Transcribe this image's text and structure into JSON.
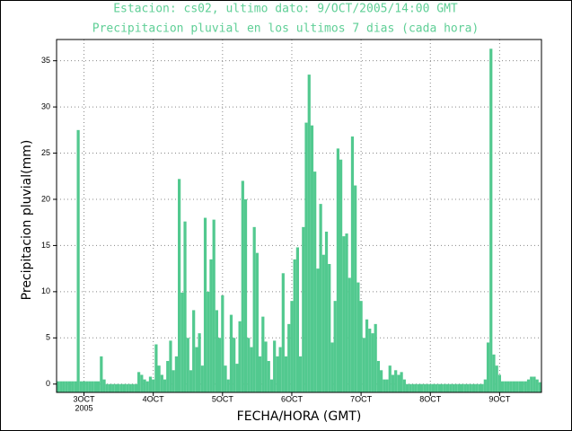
{
  "chart_data": {
    "type": "bar",
    "title": "Estacion: cs02, ultimo dato: 9/OCT/2005/14:00 GMT",
    "subtitle": "Precipitacion pluvial en los ultimos 7 dias (cada hora)",
    "x_label": "FECHA/HORA (GMT)",
    "y_label": "Precipitacion pluvial(mm)",
    "year_label": "2005",
    "color": "#52c98f",
    "grid": true,
    "x": [
      39,
      40,
      41,
      42,
      43,
      44,
      45,
      46,
      47,
      48,
      49,
      50,
      51,
      52,
      53,
      54,
      55,
      56,
      57,
      58,
      59,
      60,
      61,
      62,
      63,
      64,
      65,
      66,
      67,
      68,
      69,
      70,
      71,
      72,
      73,
      74,
      75,
      76,
      77,
      78,
      79,
      80,
      81,
      82,
      83,
      84,
      85,
      86,
      87,
      88,
      89,
      90,
      91,
      92,
      93,
      94,
      95,
      96,
      97,
      98,
      99,
      100,
      101,
      102,
      103,
      104,
      105,
      106,
      107,
      108,
      109,
      110,
      111,
      112,
      113,
      114,
      115,
      116,
      117,
      118,
      119,
      120,
      121,
      122,
      123,
      124,
      125,
      126,
      127,
      128,
      129,
      130,
      131,
      132,
      133,
      134,
      135,
      136,
      137,
      138,
      139,
      140,
      141,
      142,
      143,
      144,
      145,
      146,
      147,
      148,
      149,
      150,
      151,
      152,
      153,
      154,
      155,
      156,
      157,
      158,
      159,
      160,
      161,
      162,
      163,
      164,
      165,
      166,
      167,
      168,
      169,
      170,
      171,
      172,
      173,
      174,
      175,
      176,
      177,
      178,
      179,
      180,
      181,
      182,
      183,
      184,
      185,
      186,
      187,
      188,
      189,
      190,
      191,
      192,
      193,
      194,
      195,
      196,
      197,
      198,
      199,
      200,
      201,
      202,
      203,
      204,
      205,
      206
    ],
    "values": [
      0.3,
      0.3,
      0.3,
      0.3,
      0.3,
      0.3,
      0.3,
      27.5,
      0.3,
      0.3,
      0.3,
      0.3,
      0.3,
      0.3,
      0.3,
      3.0,
      0.5,
      0,
      0,
      0,
      0,
      0,
      0,
      0,
      0,
      0,
      0,
      0,
      1.3,
      1.0,
      0.5,
      0.3,
      0.8,
      0.5,
      4.3,
      2.0,
      1.0,
      0.5,
      2.5,
      4.7,
      1.5,
      3.0,
      22.2,
      9.9,
      17.6,
      5.0,
      1.5,
      8.0,
      4.0,
      5.5,
      2.0,
      18.0,
      10.0,
      13.5,
      17.8,
      8.0,
      5.0,
      9.6,
      2.0,
      0.5,
      7.5,
      5.0,
      2.2,
      6.8,
      22.0,
      20.0,
      5.0,
      4.0,
      17.0,
      14.2,
      3.0,
      7.3,
      4.6,
      2.5,
      0.5,
      4.7,
      3.0,
      4.0,
      12.0,
      3.0,
      6.5,
      9.0,
      13.5,
      14.8,
      3.0,
      17.0,
      28.3,
      33.5,
      28.0,
      23.0,
      12.5,
      19.5,
      14.0,
      16.5,
      13.0,
      4.5,
      9.0,
      25.5,
      24.3,
      16.0,
      16.3,
      11.5,
      26.8,
      21.5,
      11.0,
      9.0,
      5.0,
      7.0,
      6.0,
      5.5,
      6.5,
      2.5,
      1.5,
      0.5,
      0.5,
      2.0,
      1.0,
      1.5,
      1.0,
      1.3,
      0.5,
      0,
      0,
      0,
      0,
      0,
      0,
      0,
      0,
      0,
      0,
      0,
      0,
      0,
      0,
      0,
      0,
      0,
      0,
      0,
      0,
      0,
      0,
      0,
      0,
      0,
      0,
      0,
      0.5,
      4.5,
      36.3,
      3.2,
      2.0,
      1.0,
      0.3,
      0.3,
      0.3,
      0.3,
      0.3,
      0.3,
      0.3,
      0.3,
      0.3,
      0.5,
      0.8,
      0.8,
      0.5,
      0.2
    ],
    "xlim": [
      38.5,
      206.5
    ],
    "xticks": [
      {
        "value": 48,
        "label": "3OCT"
      },
      {
        "value": 72,
        "label": "4OCT"
      },
      {
        "value": 96,
        "label": "5OCT"
      },
      {
        "value": 120,
        "label": "6OCT"
      },
      {
        "value": 144,
        "label": "7OCT"
      },
      {
        "value": 168,
        "label": "8OCT"
      },
      {
        "value": 192,
        "label": "9OCT"
      }
    ],
    "ylim": [
      -0.9,
      37.3
    ],
    "yticks": [
      0,
      5,
      10,
      15,
      20,
      25,
      30,
      35
    ]
  }
}
